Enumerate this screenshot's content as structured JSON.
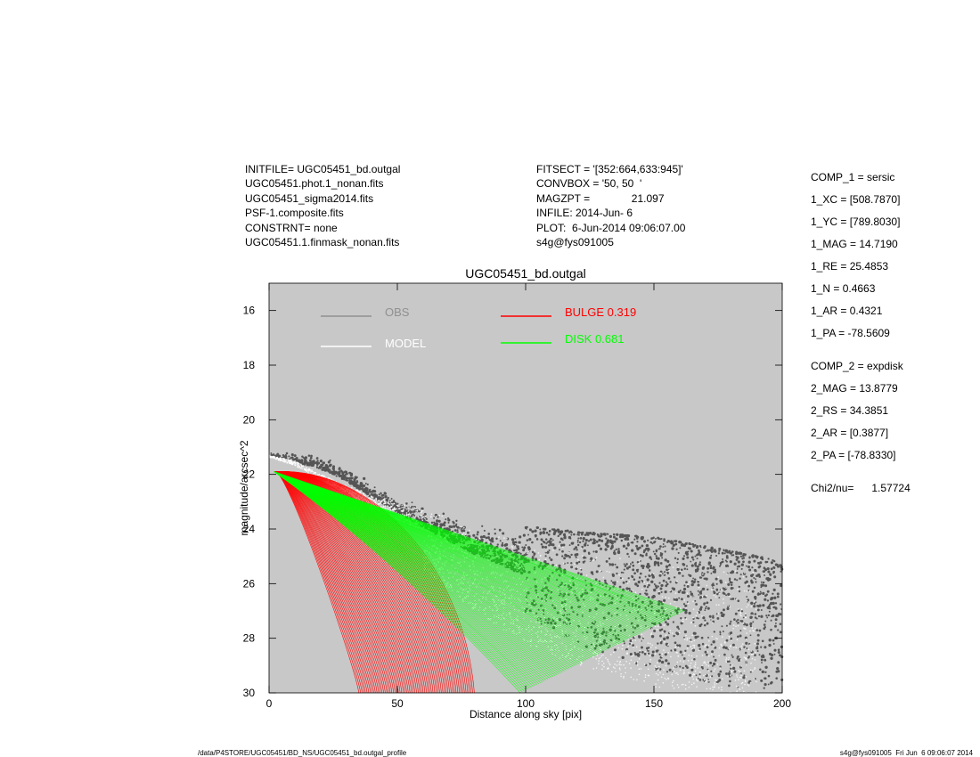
{
  "header": {
    "left": [
      "INITFILE= UGC05451_bd.outgal",
      "UGC05451.phot.1_nonan.fits",
      "UGC05451_sigma2014.fits",
      "PSF-1.composite.fits",
      "CONSTRNT= none",
      "UGC05451.1.finmask_nonan.fits"
    ],
    "middle": [
      "FITSECT = '[352:664,633:945]'",
      "CONVBOX = '50, 50  '",
      "MAGZPT =              21.097",
      "INFILE: 2014-Jun- 6",
      "PLOT:  6-Jun-2014 09:06:07.00",
      "s4g@fys091005"
    ]
  },
  "params": [
    "COMP_1  = sersic",
    "1_XC    = [508.7870]",
    "1_YC    = [789.8030]",
    "1_MAG   = 14.7190",
    "1_RE    = 25.4853",
    "1_N     = 0.4663",
    "1_AR    = 0.4321",
    "1_PA    = -78.5609",
    "COMP_2  = expdisk",
    "2_MAG   = 13.8779",
    "2_RS    = 34.3851",
    "2_AR    = [0.3877]",
    "2_PA    = [-78.8330]",
    "Chi2/nu=      1.57724"
  ],
  "footer": {
    "left": "/data/P4STORE/UGC05451/BD_NS/UGC05451_bd.outgal_profile",
    "right": "s4g@fys091005  Fri Jun  6 09:06:07 2014"
  },
  "colors": {
    "plot_bg": "#c8c8c8",
    "obs": "#555555",
    "obs_legend": "#909090",
    "model": "#ffffff",
    "bulge": "#ff0000",
    "disk": "#00ff00"
  },
  "chart_data": {
    "type": "scatter",
    "title": "UGC05451_bd.outgal",
    "xlabel": "Distance along sky [pix]",
    "ylabel": "magnitude/arcsec^2",
    "xlim": [
      0,
      200
    ],
    "ylim": [
      30,
      15
    ],
    "y_inverted": true,
    "xticks": [
      0,
      50,
      100,
      150,
      200
    ],
    "yticks": [
      16,
      18,
      20,
      22,
      24,
      26,
      28,
      30
    ],
    "grid": false,
    "legend": [
      {
        "name": "OBS",
        "color": "#909090"
      },
      {
        "name": "MODEL",
        "color": "#ffffff"
      },
      {
        "name": "BULGE  0.319",
        "color": "#ff0000"
      },
      {
        "name": "DISK  0.681",
        "color": "#00ff00"
      }
    ],
    "series": [
      {
        "name": "OBS",
        "kind": "points",
        "upper_envelope": {
          "x": [
            0,
            10,
            20,
            30,
            40,
            60,
            80,
            100,
            120,
            150,
            180,
            200
          ],
          "y": [
            21.2,
            21.2,
            21.3,
            21.6,
            22.3,
            23.1,
            23.6,
            23.9,
            24.1,
            24.3,
            24.8,
            25.2
          ]
        },
        "lower_envelope": {
          "x": [
            0,
            20,
            40,
            60,
            80,
            100,
            120,
            150,
            180,
            200
          ],
          "y": [
            21.4,
            22.2,
            23.3,
            24.6,
            26.0,
            27.2,
            28.2,
            29.2,
            29.8,
            30.0
          ]
        }
      },
      {
        "name": "MODEL",
        "kind": "points",
        "upper_envelope": {
          "x": [
            0,
            10,
            20,
            40,
            60,
            80,
            100,
            130,
            160
          ],
          "y": [
            21.3,
            21.5,
            22.0,
            22.8,
            23.3,
            23.8,
            24.2,
            24.8,
            25.4
          ]
        },
        "lower_envelope": {
          "x": [
            0,
            20,
            40,
            60,
            80,
            100,
            120,
            150,
            180,
            190
          ],
          "y": [
            21.5,
            22.5,
            24.0,
            25.5,
            27.0,
            28.2,
            29.0,
            29.8,
            30.0,
            30.0
          ]
        }
      },
      {
        "name": "BULGE  0.319",
        "kind": "ellipse_family",
        "start": {
          "x": 2,
          "y": 21.9
        },
        "end_x_range": [
          35,
          80
        ],
        "end_y": 30
      },
      {
        "name": "DISK  0.681",
        "kind": "fan",
        "start": {
          "x": 2,
          "y": 21.9
        },
        "upper_end": {
          "x": 162,
          "y": 27.0
        },
        "lower_end": {
          "x": 98,
          "y": 30.0
        }
      }
    ]
  }
}
